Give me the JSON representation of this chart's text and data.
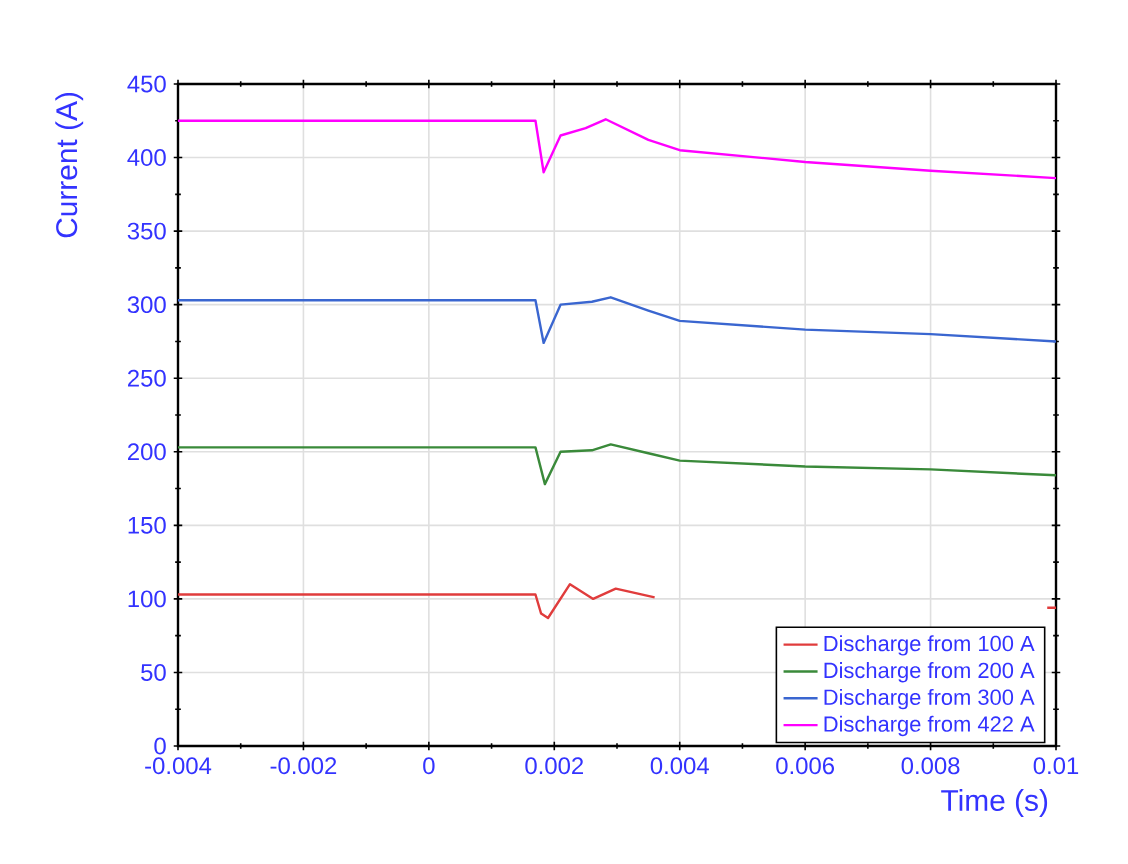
{
  "chart_data": {
    "type": "line",
    "xlabel": "Time (s)",
    "ylabel": "Current (A)",
    "xlim": [
      -0.004,
      0.01
    ],
    "xticks": [
      -0.004,
      -0.002,
      0,
      0.002,
      0.004,
      0.006,
      0.008,
      0.01
    ],
    "ylim": [
      0,
      450
    ],
    "yticks": [
      0,
      50,
      100,
      150,
      200,
      250,
      300,
      350,
      400,
      450
    ],
    "grid": true,
    "legend": "bottom right",
    "marker": "none",
    "line_style": "solid",
    "series": [
      {
        "name": "Discharge from 100 A",
        "color": "#e03c3c",
        "x": [
          -0.004,
          0.0017,
          0.00179,
          0.0019,
          0.00225,
          0.00262,
          0.00298,
          0.0036,
          0.0037,
          0.0098,
          0.00986,
          0.01
        ],
        "values": [
          103,
          103,
          90,
          87,
          110,
          100,
          107,
          101,
          null,
          null,
          94,
          94
        ]
      },
      {
        "name": "Discharge from 200 A",
        "color": "#3a8a3a",
        "x": [
          -0.004,
          0.0017,
          0.00185,
          0.0021,
          0.0026,
          0.0029,
          0.0035,
          0.004,
          0.006,
          0.008,
          0.01
        ],
        "values": [
          203,
          203,
          178,
          200,
          201,
          205,
          199,
          194,
          190,
          188,
          184
        ]
      },
      {
        "name": "Discharge from 300 A",
        "color": "#3a66d0",
        "x": [
          -0.004,
          0.0017,
          0.00183,
          0.0021,
          0.0026,
          0.0029,
          0.0035,
          0.004,
          0.006,
          0.008,
          0.01
        ],
        "values": [
          303,
          303,
          274,
          300,
          302,
          305,
          296,
          289,
          283,
          280,
          275
        ]
      },
      {
        "name": "Discharge from 422 A",
        "color": "#ff00ff",
        "x": [
          -0.004,
          0.0017,
          0.00183,
          0.0021,
          0.0025,
          0.00282,
          0.0035,
          0.004,
          0.006,
          0.008,
          0.01
        ],
        "values": [
          425,
          425,
          390,
          415,
          420,
          426,
          412,
          405,
          397,
          391,
          386
        ]
      }
    ]
  }
}
